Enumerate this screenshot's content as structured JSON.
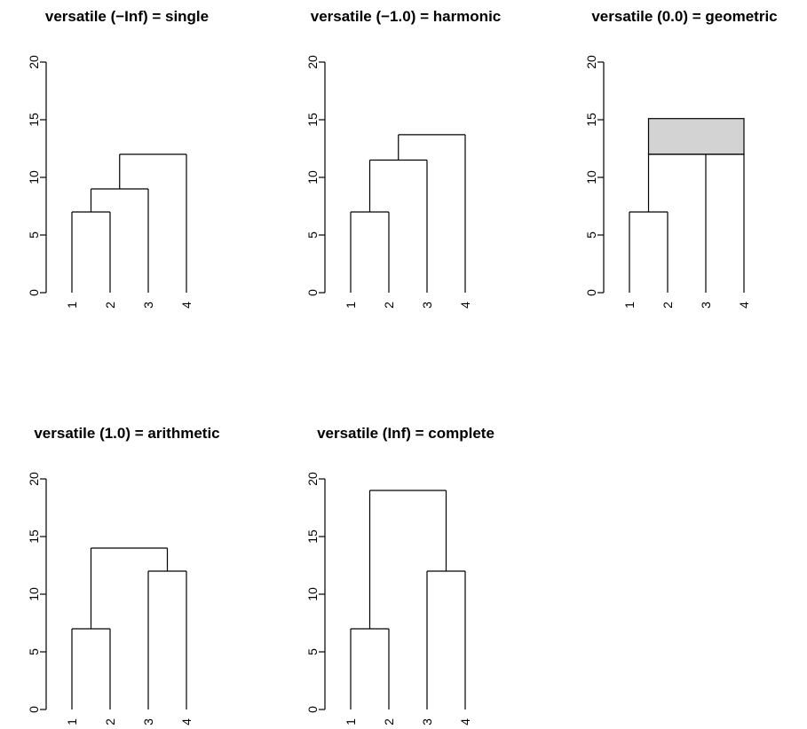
{
  "chart_data": [
    {
      "type": "dendrogram",
      "title": "versatile (−Inf) = single",
      "leaves": [
        "1",
        "2",
        "3",
        "4"
      ],
      "ylim": [
        0,
        20
      ],
      "yticks": [
        "0",
        "5",
        "10",
        "15",
        "20"
      ],
      "merges": [
        {
          "members": [
            "1",
            "2"
          ],
          "height": 7
        },
        {
          "members": [
            "1",
            "2",
            "3"
          ],
          "height": 9
        },
        {
          "members": [
            "1",
            "2",
            "3",
            "4"
          ],
          "height": 12
        }
      ]
    },
    {
      "type": "dendrogram",
      "title": "versatile (−1.0) = harmonic",
      "leaves": [
        "1",
        "2",
        "3",
        "4"
      ],
      "ylim": [
        0,
        20
      ],
      "yticks": [
        "0",
        "5",
        "10",
        "15",
        "20"
      ],
      "merges": [
        {
          "members": [
            "1",
            "2"
          ],
          "height": 7
        },
        {
          "members": [
            "1",
            "2",
            "3"
          ],
          "height": 11.5
        },
        {
          "members": [
            "1",
            "2",
            "3",
            "4"
          ],
          "height": 13.7
        }
      ]
    },
    {
      "type": "dendrogram",
      "title": "versatile (0.0) = geometric",
      "leaves": [
        "1",
        "2",
        "3",
        "4"
      ],
      "ylim": [
        0,
        20
      ],
      "yticks": [
        "0",
        "5",
        "10",
        "15",
        "20"
      ],
      "merges": [
        {
          "members": [
            "1",
            "2"
          ],
          "height": 7
        },
        {
          "members": [
            "1",
            "2",
            "3",
            "4"
          ],
          "height": 12,
          "height_upper": 15.1
        }
      ]
    },
    {
      "type": "dendrogram",
      "title": "versatile (1.0) = arithmetic",
      "leaves": [
        "1",
        "2",
        "3",
        "4"
      ],
      "ylim": [
        0,
        20
      ],
      "yticks": [
        "0",
        "5",
        "10",
        "15",
        "20"
      ],
      "merges": [
        {
          "members": [
            "1",
            "2"
          ],
          "height": 7
        },
        {
          "members": [
            "3",
            "4"
          ],
          "height": 12
        },
        {
          "members": [
            "1",
            "2",
            "3",
            "4"
          ],
          "height": 14
        }
      ]
    },
    {
      "type": "dendrogram",
      "title": "versatile (Inf) = complete",
      "leaves": [
        "1",
        "2",
        "3",
        "4"
      ],
      "ylim": [
        0,
        20
      ],
      "yticks": [
        "0",
        "5",
        "10",
        "15",
        "20"
      ],
      "merges": [
        {
          "members": [
            "1",
            "2"
          ],
          "height": 7
        },
        {
          "members": [
            "3",
            "4"
          ],
          "height": 12
        },
        {
          "members": [
            "1",
            "2",
            "3",
            "4"
          ],
          "height": 19
        }
      ]
    }
  ],
  "colors": {
    "line": "#000000",
    "tie_band_fill": "#d3d3d3",
    "background": "#ffffff"
  }
}
